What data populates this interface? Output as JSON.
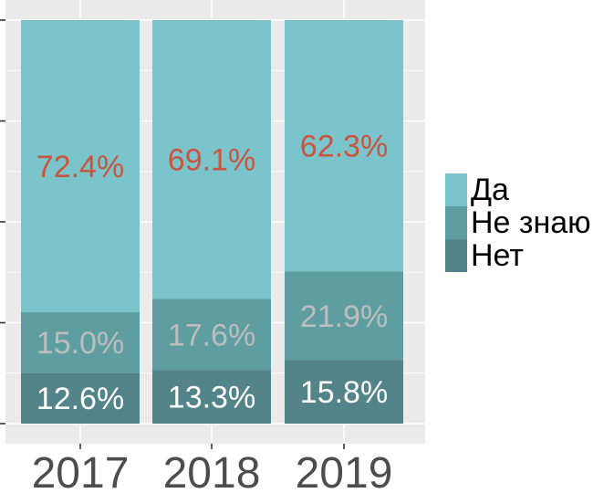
{
  "chart_data": {
    "type": "bar",
    "stacked": true,
    "categories": [
      "2017",
      "2018",
      "2019"
    ],
    "series": [
      {
        "name": "Нет",
        "values": [
          12.6,
          13.3,
          15.8
        ],
        "labels": [
          "12.6%",
          "13.3%",
          "15.8%"
        ]
      },
      {
        "name": "Не знаю",
        "values": [
          15.0,
          17.6,
          21.9
        ],
        "labels": [
          "15.0%",
          "17.6%",
          "21.9%"
        ]
      },
      {
        "name": "Да",
        "values": [
          72.4,
          69.1,
          62.3
        ],
        "labels": [
          "72.4%",
          "69.1%",
          "62.3%"
        ]
      }
    ],
    "ylim": [
      0,
      100
    ],
    "grid": true,
    "legend_position": "right",
    "colors": {
      "panel_bg": "#ebebeb",
      "grid": "#ffffff",
      "Да": "#7bc4cc",
      "Не знаю": "#5f9ea0",
      "Нет": "#528489",
      "label_Да": "#c8553d",
      "label_Не знаю": "#bdbdbd",
      "label_Нет": "#ffffff",
      "axis_text": "#4d4d4d"
    }
  },
  "legend": {
    "items": [
      {
        "label": "Да",
        "color": "#7bc4cc"
      },
      {
        "label": "Не знаю",
        "color": "#5f9ea0"
      },
      {
        "label": "Нет",
        "color": "#528489"
      }
    ]
  }
}
